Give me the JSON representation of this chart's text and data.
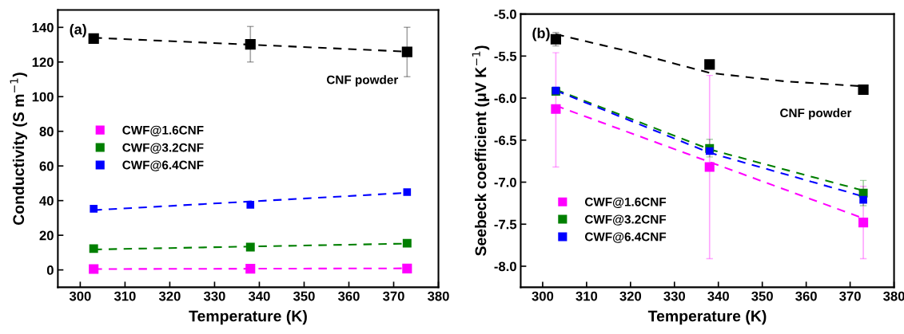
{
  "chart_data": [
    {
      "type": "scatter",
      "xlabel": "Temperature (K)",
      "ylabel": "Conductivity (S m$^{−1}$)",
      "xlim": [
        295,
        380
      ],
      "xticks": [
        300,
        310,
        320,
        330,
        340,
        350,
        360,
        370,
        380
      ],
      "ylim": [
        -10,
        150
      ],
      "yticks": [
        0,
        20,
        40,
        60,
        80,
        100,
        120,
        140
      ],
      "marker": "square",
      "legend": "center left",
      "grid": false,
      "annotations": [
        "(a)",
        "CNF powder"
      ],
      "x": [
        303,
        338,
        373
      ],
      "series": [
        {
          "color": "#000000",
          "values": [
            133.5,
            130.2,
            125.8
          ],
          "errors": [
            null,
            [
              120,
              140.5
            ],
            [
              111.5,
              140
            ]
          ]
        },
        {
          "name": "CWF@1.6CNF",
          "color": "#ff00ff",
          "values": [
            0.5,
            0.7,
            0.8
          ]
        },
        {
          "name": "CWF@3.2CNF",
          "color": "#007f00",
          "values": [
            12.3,
            13.2,
            15.4
          ]
        },
        {
          "name": "CWF@6.4CNF",
          "color": "#0000ff",
          "values": [
            35.3,
            37.6,
            44.9
          ]
        },
        {
          "type": "line",
          "line_style": "dashed",
          "marker": "none",
          "color": "#000000",
          "x": [
            303,
            373
          ],
          "values": [
            134,
            126
          ]
        },
        {
          "type": "line",
          "line_style": "dashed",
          "marker": "none",
          "color": "#ff00ff",
          "x": [
            303,
            373
          ],
          "values": [
            0.5,
            0.9
          ]
        },
        {
          "type": "line",
          "line_style": "dashed",
          "marker": "none",
          "color": "#007f00",
          "x": [
            303,
            373
          ],
          "values": [
            11.8,
            15.2
          ]
        },
        {
          "type": "line",
          "line_style": "dashed",
          "marker": "none",
          "color": "#0000ff",
          "x": [
            303,
            373
          ],
          "values": [
            34.5,
            44.5
          ]
        }
      ]
    },
    {
      "type": "scatter",
      "xlabel": "Temperature (K)",
      "ylabel": "Seebeck coefficient (μV K$^{−1}$)",
      "xlim": [
        295,
        380
      ],
      "xticks": [
        300,
        310,
        320,
        330,
        340,
        350,
        360,
        370,
        380
      ],
      "ylim": [
        -8.25,
        -5.0
      ],
      "yticks": [
        {
          "value": -8.0,
          "label": "-8.0"
        },
        {
          "value": -7.5,
          "label": "-7.5"
        },
        {
          "value": -7.0,
          "label": "-7.0"
        },
        {
          "value": -6.5,
          "label": "-6.5"
        },
        {
          "value": -6.0,
          "label": "-6.0"
        },
        {
          "value": -5.5,
          "label": "-5.5"
        },
        {
          "value": -5.0,
          "label": "-5.0"
        }
      ],
      "marker": "square",
      "legend": "lower left",
      "grid": false,
      "annotations": [
        "(b)",
        "CNF powder"
      ],
      "x": [
        303,
        338,
        373
      ],
      "series": [
        {
          "color": "#000000",
          "values": [
            -5.3,
            -5.6,
            -5.9
          ],
          "errors": [
            [
              -5.38,
              -5.22
            ],
            [
              -5.65,
              -5.55
            ],
            null
          ]
        },
        {
          "name": "CWF@1.6CNF",
          "color": "#ff00ff",
          "values": [
            -6.13,
            -6.82,
            -7.48
          ],
          "errors": [
            [
              -6.82,
              -5.46
            ],
            [
              -7.91,
              -5.73
            ],
            [
              -7.91,
              -7.05
            ]
          ]
        },
        {
          "name": "CWF@3.2CNF",
          "color": "#007f00",
          "values": [
            -5.92,
            -6.6,
            -7.13
          ],
          "errors": [
            null,
            [
              -6.7,
              -6.49
            ],
            [
              -7.28,
              -6.98
            ]
          ]
        },
        {
          "name": "CWF@6.4CNF",
          "color": "#0000ff",
          "values": [
            -5.91,
            -6.63,
            -7.21
          ]
        },
        {
          "type": "line",
          "line_style": "dashed",
          "marker": "none",
          "color": "#000000",
          "x": [
            303,
            320,
            338,
            355,
            373
          ],
          "values": [
            -5.24,
            -5.45,
            -5.7,
            -5.8,
            -5.86
          ]
        },
        {
          "type": "line",
          "line_style": "dashed",
          "marker": "none",
          "color": "#ff00ff",
          "x": [
            303,
            373
          ],
          "values": [
            -6.09,
            -7.43
          ]
        },
        {
          "type": "line",
          "line_style": "dashed",
          "marker": "none",
          "color": "#007f00",
          "x": [
            303,
            338,
            373
          ],
          "values": [
            -5.9,
            -6.61,
            -7.1
          ]
        },
        {
          "type": "line",
          "line_style": "dashed",
          "marker": "none",
          "color": "#0000ff",
          "x": [
            303,
            338,
            373
          ],
          "values": [
            -5.91,
            -6.65,
            -7.17
          ]
        }
      ]
    }
  ]
}
